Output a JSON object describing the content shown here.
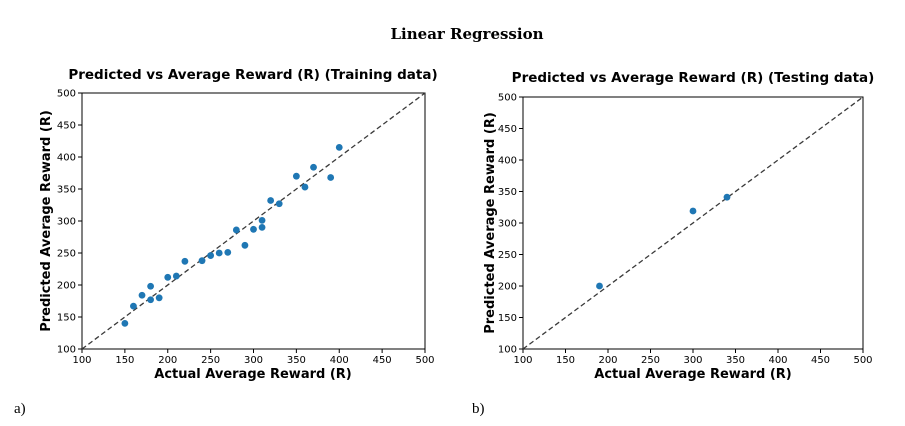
{
  "page_title": "Linear Regression",
  "panel_labels": [
    "a)",
    "b)"
  ],
  "chart_data": [
    {
      "type": "scatter",
      "title": "Predicted vs Average Reward (R) (Training data)",
      "xlabel": "Actual Average Reward (R)",
      "ylabel": "Predicted Average Reward (R)",
      "xlim": [
        100,
        500
      ],
      "ylim": [
        100,
        500
      ],
      "xticks": [
        100,
        150,
        200,
        250,
        300,
        350,
        400,
        450,
        500
      ],
      "yticks": [
        100,
        150,
        200,
        250,
        300,
        350,
        400,
        450,
        500
      ],
      "reference_line": "y = x (dashed)",
      "grid": false,
      "marker_color": "#1f77b4",
      "line_color": "#3a3a3a",
      "x": [
        150,
        160,
        170,
        180,
        180,
        190,
        200,
        210,
        220,
        240,
        250,
        260,
        270,
        280,
        290,
        300,
        310,
        310,
        320,
        330,
        350,
        360,
        370,
        390,
        400
      ],
      "y": [
        140,
        167,
        184,
        198,
        177,
        180,
        212,
        214,
        237,
        238,
        246,
        250,
        251,
        286,
        262,
        287,
        290,
        301,
        332,
        327,
        370,
        353,
        384,
        368,
        415
      ]
    },
    {
      "type": "scatter",
      "title": "Predicted vs Average Reward (R) (Testing data)",
      "xlabel": "Actual Average Reward (R)",
      "ylabel": "Predicted Average Reward (R)",
      "xlim": [
        100,
        500
      ],
      "ylim": [
        100,
        500
      ],
      "xticks": [
        100,
        150,
        200,
        250,
        300,
        350,
        400,
        450,
        500
      ],
      "yticks": [
        100,
        150,
        200,
        250,
        300,
        350,
        400,
        450,
        500
      ],
      "reference_line": "y = x (dashed)",
      "grid": false,
      "marker_color": "#1f77b4",
      "line_color": "#3a3a3a",
      "x": [
        190,
        300,
        340
      ],
      "y": [
        200,
        319,
        341
      ]
    }
  ]
}
